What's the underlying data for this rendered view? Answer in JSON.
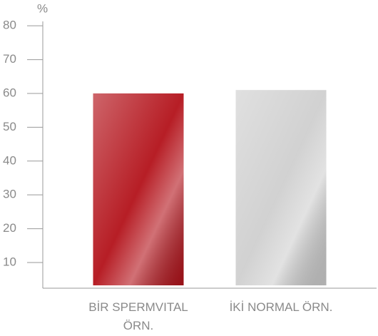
{
  "chart_data": {
    "type": "bar",
    "y_label": "%",
    "categories": [
      "BİR SPERMVITAL ÖRN.",
      "İKİ NORMAL ÖRN."
    ],
    "values": [
      60,
      61
    ],
    "colors": [
      "#b3121a",
      "#cfcfcf"
    ],
    "ylim": [
      2.4,
      81.3
    ],
    "yticks": [
      10,
      20,
      30,
      40,
      50,
      60,
      70,
      80
    ],
    "grid": false
  }
}
